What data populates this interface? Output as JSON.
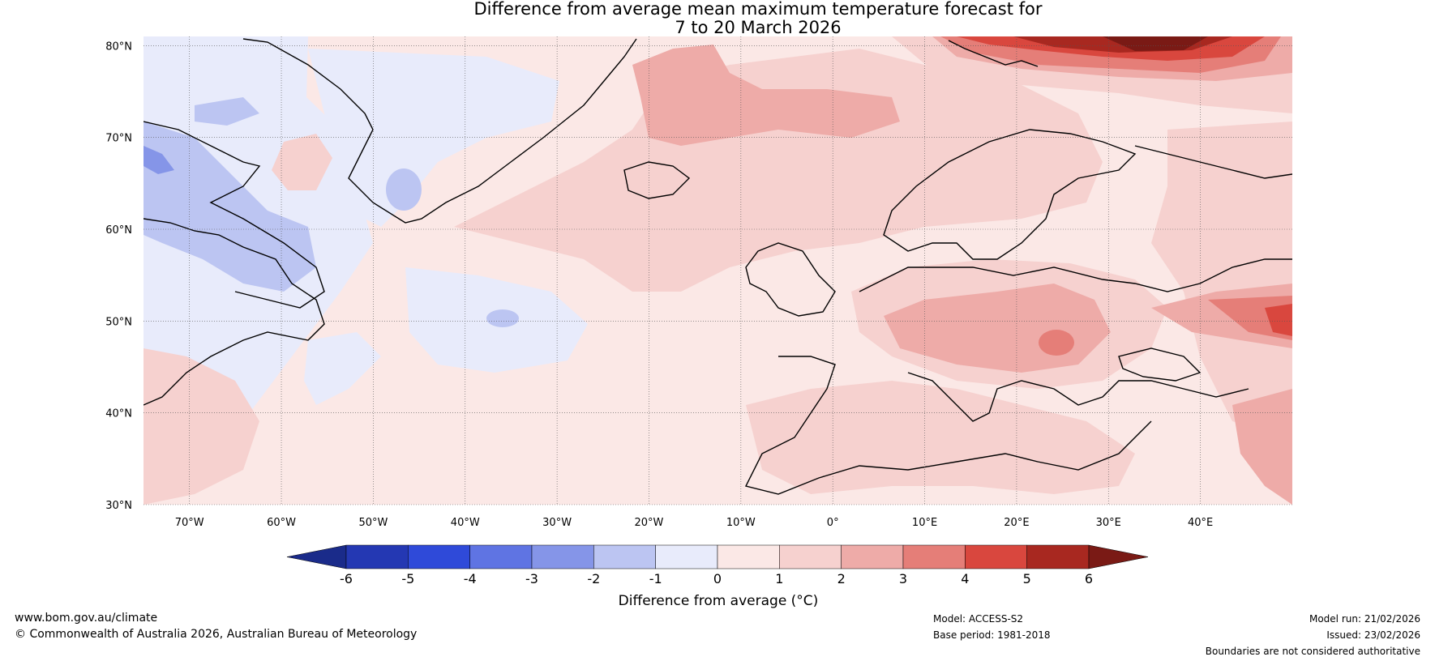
{
  "title": {
    "line1": "Difference from average mean maximum temperature forecast for",
    "line2": "7 to 20 March 2026"
  },
  "map": {
    "lat_labels": [
      "80°N",
      "70°N",
      "60°N",
      "50°N",
      "40°N",
      "30°N"
    ],
    "lon_labels": [
      "70°W",
      "60°W",
      "50°W",
      "40°W",
      "30°W",
      "20°W",
      "10°W",
      "0°",
      "10°E",
      "20°E",
      "30°E",
      "40°E"
    ],
    "lon_range": [
      -75,
      50
    ],
    "lat_range": [
      30,
      81
    ],
    "regions_note": [
      "Greenland",
      "Iceland",
      "Europe",
      "North Atlantic",
      "Canada (east)"
    ]
  },
  "colorbar": {
    "label": "Difference from average (°C)",
    "ticks": [
      "-6",
      "-5",
      "-4",
      "-3",
      "-2",
      "-1",
      "0",
      "1",
      "2",
      "3",
      "4",
      "5",
      "6"
    ],
    "colors": [
      "#1a2b8a",
      "#2438b3",
      "#2f4ad9",
      "#5f74e3",
      "#8595e8",
      "#bcc5f2",
      "#e8ebfb",
      "#fbe8e6",
      "#f6d1cf",
      "#eeaba8",
      "#e57e78",
      "#d9473e",
      "#a82820",
      "#7a1a15"
    ]
  },
  "footer": {
    "url": "www.bom.gov.au/climate",
    "copyright": "© Commonwealth of Australia 2026, Australian Bureau of Meteorology",
    "model": "Model: ACCESS-S2",
    "base_period": "Base period: 1981-2018",
    "model_run": "Model run: 21/02/2026",
    "issued": "Issued: 23/02/2026",
    "disclaimer": "Boundaries are not considered authoritative"
  }
}
